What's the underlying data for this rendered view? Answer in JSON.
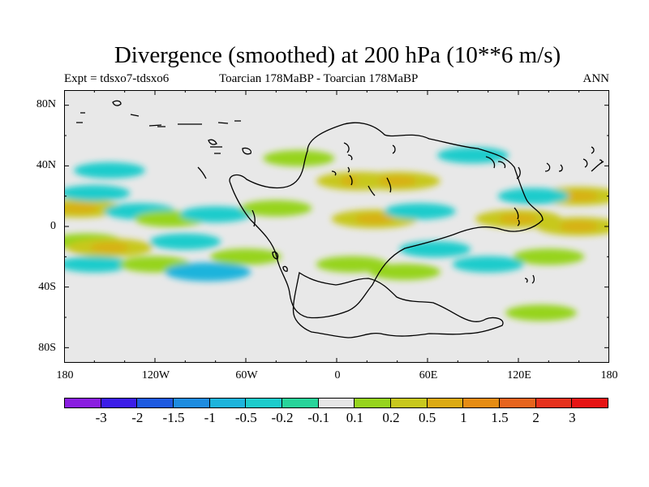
{
  "title": "Divergence (smoothed) at 200 hPa (10**6 m/s)",
  "subtitle_left": "Expt = tdsxo7-tdsxo6",
  "subtitle_center": "Toarcian 178MaBP - Toarcian 178MaBP",
  "subtitle_right": "ANN",
  "map": {
    "lat_ticks": [
      "80N",
      "40N",
      "0",
      "40S",
      "80S"
    ],
    "lon_ticks": [
      "180",
      "120W",
      "60W",
      "0",
      "60E",
      "120E",
      "180"
    ],
    "background_color": "#e8e8e8"
  },
  "colorbar": {
    "colors": [
      "#8a1ee0",
      "#3c1ee8",
      "#1e5ae0",
      "#1e8ce0",
      "#1eb4dc",
      "#1ecccc",
      "#28d49a",
      "#e6e6e6",
      "#96d41e",
      "#c8c81e",
      "#dcaa14",
      "#e68c14",
      "#e6641e",
      "#e6321e",
      "#e61414"
    ],
    "labels": [
      "-3",
      "-2",
      "-1.5",
      "-1",
      "-0.5",
      "-0.2",
      "-0.1",
      "0.1",
      "0.2",
      "0.5",
      "1",
      "1.5",
      "2",
      "3"
    ]
  },
  "chart_data": {
    "type": "heatmap",
    "title": "Divergence (smoothed) at 200 hPa (10**6 m/s)",
    "units": "10**6 m/s",
    "levels": [
      -3,
      -2,
      -1.5,
      -1,
      -0.5,
      -0.2,
      -0.1,
      0.1,
      0.2,
      0.5,
      1,
      1.5,
      2,
      3
    ],
    "xlim": [
      -180,
      180
    ],
    "ylim": [
      -90,
      90
    ],
    "features": [
      {
        "lon": -170,
        "lat": 12,
        "value": 0.5
      },
      {
        "lon": -160,
        "lat": 22,
        "value": -0.2
      },
      {
        "lon": -150,
        "lat": 37,
        "value": -0.2
      },
      {
        "lon": -165,
        "lat": -10,
        "value": 0.2
      },
      {
        "lon": -150,
        "lat": -14,
        "value": 0.5
      },
      {
        "lon": -160,
        "lat": -25,
        "value": -0.2
      },
      {
        "lon": -130,
        "lat": 10,
        "value": -0.2
      },
      {
        "lon": -120,
        "lat": -25,
        "value": 0.2
      },
      {
        "lon": -110,
        "lat": 5,
        "value": 0.2
      },
      {
        "lon": -85,
        "lat": -30,
        "value": -0.5
      },
      {
        "lon": -100,
        "lat": -10,
        "value": -0.2
      },
      {
        "lon": -80,
        "lat": 8,
        "value": -0.2
      },
      {
        "lon": -60,
        "lat": -20,
        "value": 0.2
      },
      {
        "lon": -40,
        "lat": 12,
        "value": 0.2
      },
      {
        "lon": -25,
        "lat": 45,
        "value": 0.2
      },
      {
        "lon": 15,
        "lat": 30,
        "value": 0.5
      },
      {
        "lon": 40,
        "lat": 30,
        "value": 0.5
      },
      {
        "lon": 25,
        "lat": 5,
        "value": 0.5
      },
      {
        "lon": 10,
        "lat": -25,
        "value": 0.2
      },
      {
        "lon": 45,
        "lat": -30,
        "value": 0.2
      },
      {
        "lon": 55,
        "lat": 10,
        "value": -0.2
      },
      {
        "lon": 65,
        "lat": -15,
        "value": -0.2
      },
      {
        "lon": 90,
        "lat": 47,
        "value": -0.2
      },
      {
        "lon": 120,
        "lat": 5,
        "value": 0.5
      },
      {
        "lon": 160,
        "lat": 0,
        "value": 0.5
      },
      {
        "lon": 160,
        "lat": 20,
        "value": 0.5
      },
      {
        "lon": 140,
        "lat": -20,
        "value": 0.2
      },
      {
        "lon": 130,
        "lat": 20,
        "value": -0.2
      },
      {
        "lon": 100,
        "lat": -25,
        "value": -0.2
      },
      {
        "lon": 135,
        "lat": -57,
        "value": 0.2
      }
    ]
  }
}
